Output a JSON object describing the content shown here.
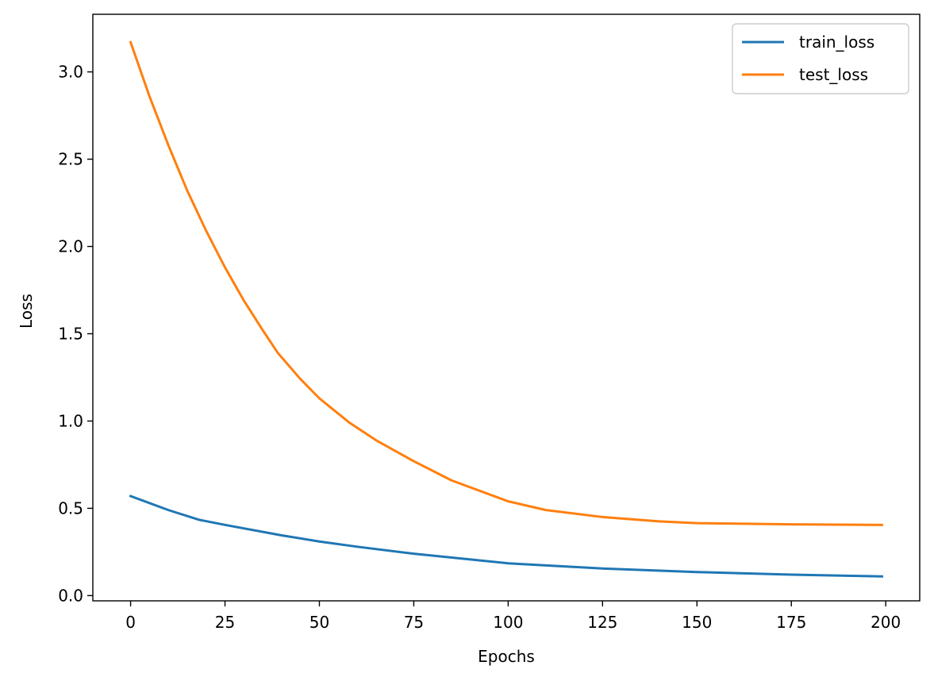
{
  "chart_data": {
    "type": "line",
    "xlabel": "Epochs",
    "ylabel": "Loss",
    "xlim": [
      -10,
      209
    ],
    "ylim": [
      -0.03,
      3.33
    ],
    "xticks": [
      0,
      25,
      50,
      75,
      100,
      125,
      150,
      175,
      200
    ],
    "yticks": [
      0.0,
      0.5,
      1.0,
      1.5,
      2.0,
      2.5,
      3.0
    ],
    "grid": false,
    "legend_position": "top-right",
    "series": [
      {
        "name": "train_loss",
        "color": "#1f77b4",
        "x": [
          0,
          10,
          18,
          25,
          40,
          50,
          60,
          75,
          100,
          125,
          150,
          175,
          199
        ],
        "y": [
          0.57,
          0.49,
          0.435,
          0.405,
          0.345,
          0.31,
          0.28,
          0.24,
          0.185,
          0.155,
          0.135,
          0.12,
          0.11
        ]
      },
      {
        "name": "test_loss",
        "color": "#ff7f0e",
        "x": [
          0,
          5,
          10,
          15,
          20,
          25,
          30,
          35,
          39,
          45,
          50,
          58,
          65,
          75,
          85,
          100,
          110,
          125,
          140,
          150,
          175,
          199
        ],
        "y": [
          3.17,
          2.86,
          2.58,
          2.32,
          2.09,
          1.88,
          1.69,
          1.52,
          1.39,
          1.24,
          1.13,
          0.99,
          0.89,
          0.77,
          0.66,
          0.54,
          0.49,
          0.45,
          0.425,
          0.415,
          0.408,
          0.405
        ]
      }
    ]
  }
}
